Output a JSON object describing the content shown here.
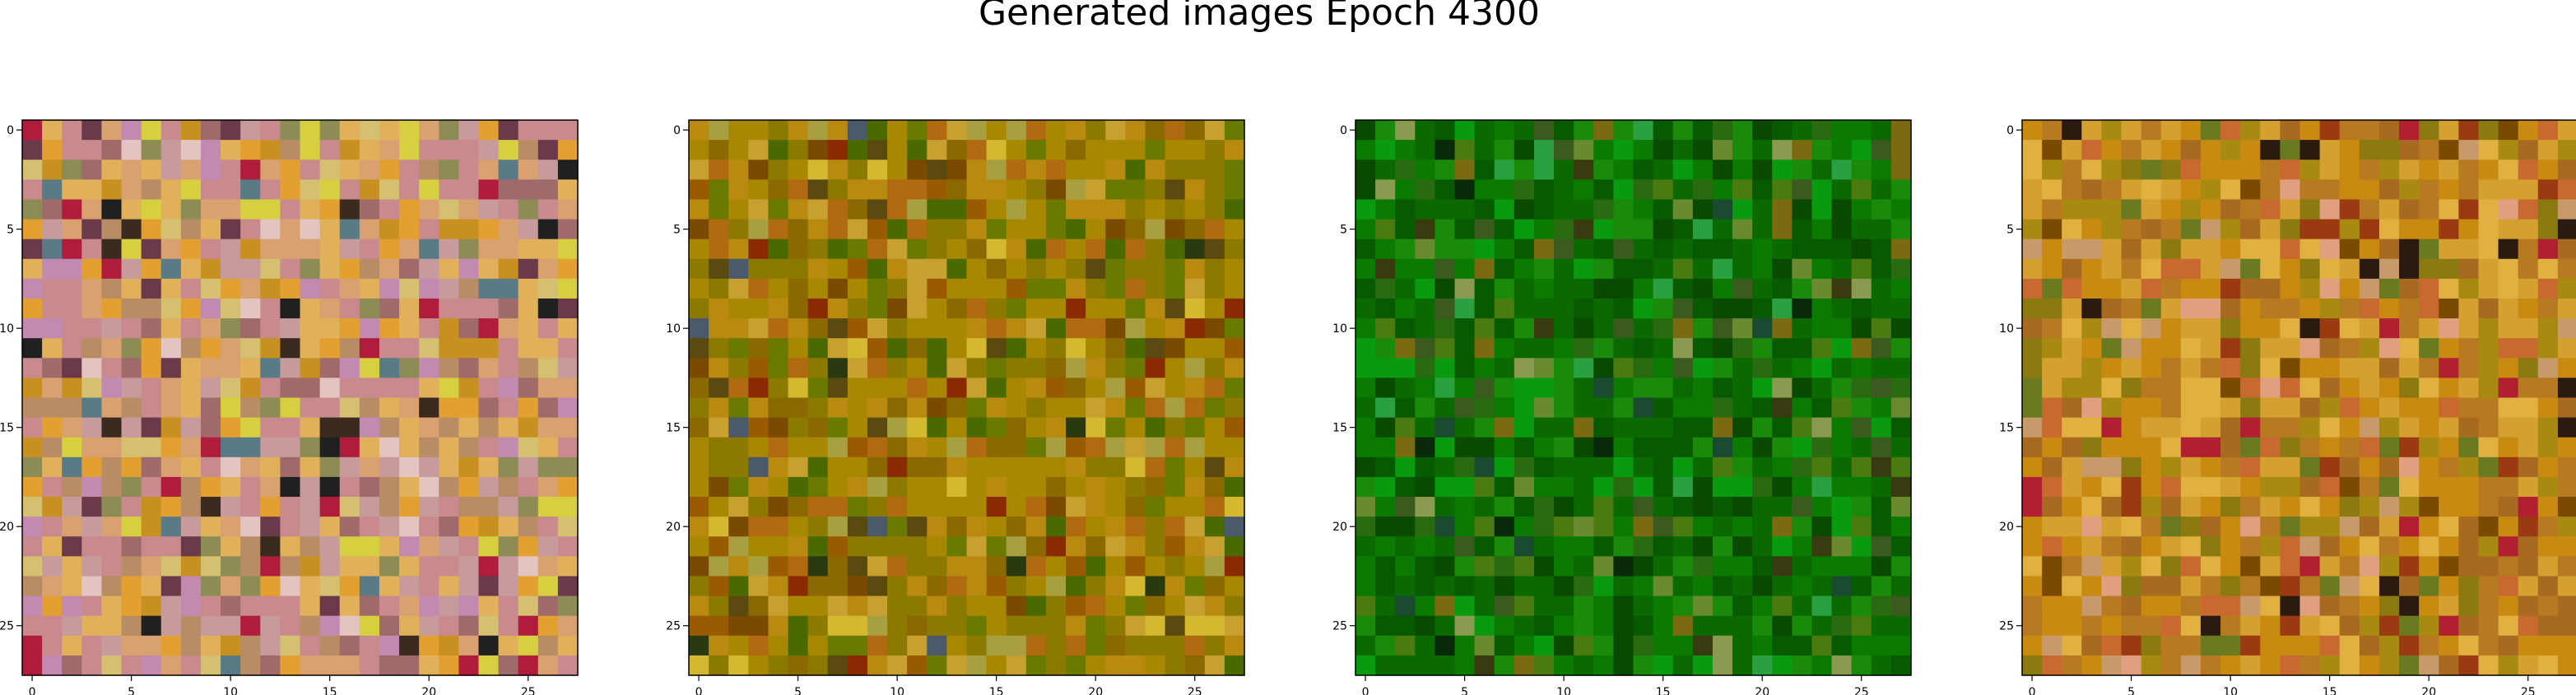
{
  "figure": {
    "title": "Generated images Epoch 4300"
  },
  "chart_data": [
    {
      "type": "heatmap",
      "description": "generated image 1",
      "image_size": 28,
      "x_ticks": [
        0,
        5,
        10,
        15,
        20,
        25
      ],
      "y_ticks": [
        0,
        5,
        10,
        15,
        20,
        25
      ],
      "xlim": [
        -0.5,
        27.5
      ],
      "ylim": [
        27.5,
        -0.5
      ],
      "grid": false,
      "palette": [
        "#c98a8e",
        "#d9a070",
        "#e0b05a",
        "#c79a9c",
        "#b88c64",
        "#e2a030",
        "#a06a6a",
        "#d4c070",
        "#8c8c54",
        "#c28ab0",
        "#d6d040",
        "#6a3a4a",
        "#5a7a86",
        "#e4c4c0",
        "#b01c3c",
        "#3a2a20",
        "#202020",
        "#c89020"
      ],
      "palette_weights": [
        10,
        8,
        8,
        6,
        5,
        5,
        3,
        3,
        3,
        3,
        2,
        2,
        1,
        2,
        2,
        1,
        1,
        4
      ]
    },
    {
      "type": "heatmap",
      "description": "generated image 2",
      "image_size": 28,
      "x_ticks": [
        0,
        5,
        10,
        15,
        20,
        25
      ],
      "y_ticks": [
        0,
        5,
        10,
        15,
        20,
        25
      ],
      "xlim": [
        -0.5,
        27.5
      ],
      "ylim": [
        27.5,
        -0.5
      ],
      "grid": false,
      "palette": [
        "#a88800",
        "#b88a10",
        "#8c7a00",
        "#6a7a00",
        "#b06a10",
        "#c8a030",
        "#8a6a00",
        "#4a6a00",
        "#9a5a00",
        "#d4b830",
        "#5a4a10",
        "#a8a040",
        "#7a4a00",
        "#2a3a10",
        "#8a2a00",
        "#4a5a6a"
      ],
      "palette_weights": [
        12,
        8,
        8,
        6,
        6,
        4,
        5,
        4,
        3,
        2,
        2,
        3,
        2,
        1,
        1,
        1
      ]
    },
    {
      "type": "heatmap",
      "description": "generated image 3",
      "image_size": 28,
      "x_ticks": [
        0,
        5,
        10,
        15,
        20,
        25
      ],
      "y_ticks": [
        0,
        5,
        10,
        15,
        20,
        25
      ],
      "xlim": [
        -0.5,
        27.5
      ],
      "ylim": [
        27.5,
        -0.5
      ],
      "grid": false,
      "palette": [
        "#0a6a00",
        "#0a7a00",
        "#085a00",
        "#1a8a0a",
        "#0a4a00",
        "#2a6a10",
        "#4a7a10",
        "#0a9a10",
        "#3a5a20",
        "#6a8a30",
        "#7a6a10",
        "#082a08",
        "#1a4a30",
        "#2aa040",
        "#8a9a50",
        "#3a3a10"
      ],
      "palette_weights": [
        14,
        10,
        9,
        6,
        6,
        4,
        3,
        4,
        2,
        2,
        2,
        1,
        1,
        1,
        1,
        1
      ]
    },
    {
      "type": "heatmap",
      "description": "generated image 4",
      "image_size": 28,
      "x_ticks": [
        0,
        5,
        10,
        15,
        20,
        25
      ],
      "y_ticks": [
        0,
        5,
        10,
        15,
        20,
        25
      ],
      "xlim": [
        -0.5,
        27.5
      ],
      "ylim": [
        27.5,
        -0.5
      ],
      "grid": false,
      "palette": [
        "#c88a10",
        "#b87a20",
        "#d4a030",
        "#a86a20",
        "#e0b040",
        "#a88a10",
        "#c86a30",
        "#8a7a10",
        "#c89a6a",
        "#9a3a10",
        "#e0a080",
        "#7a4a00",
        "#2a1a10",
        "#b02030",
        "#6a7a20"
      ],
      "palette_weights": [
        10,
        8,
        8,
        6,
        5,
        5,
        4,
        4,
        3,
        3,
        2,
        2,
        1,
        1,
        2
      ]
    }
  ]
}
